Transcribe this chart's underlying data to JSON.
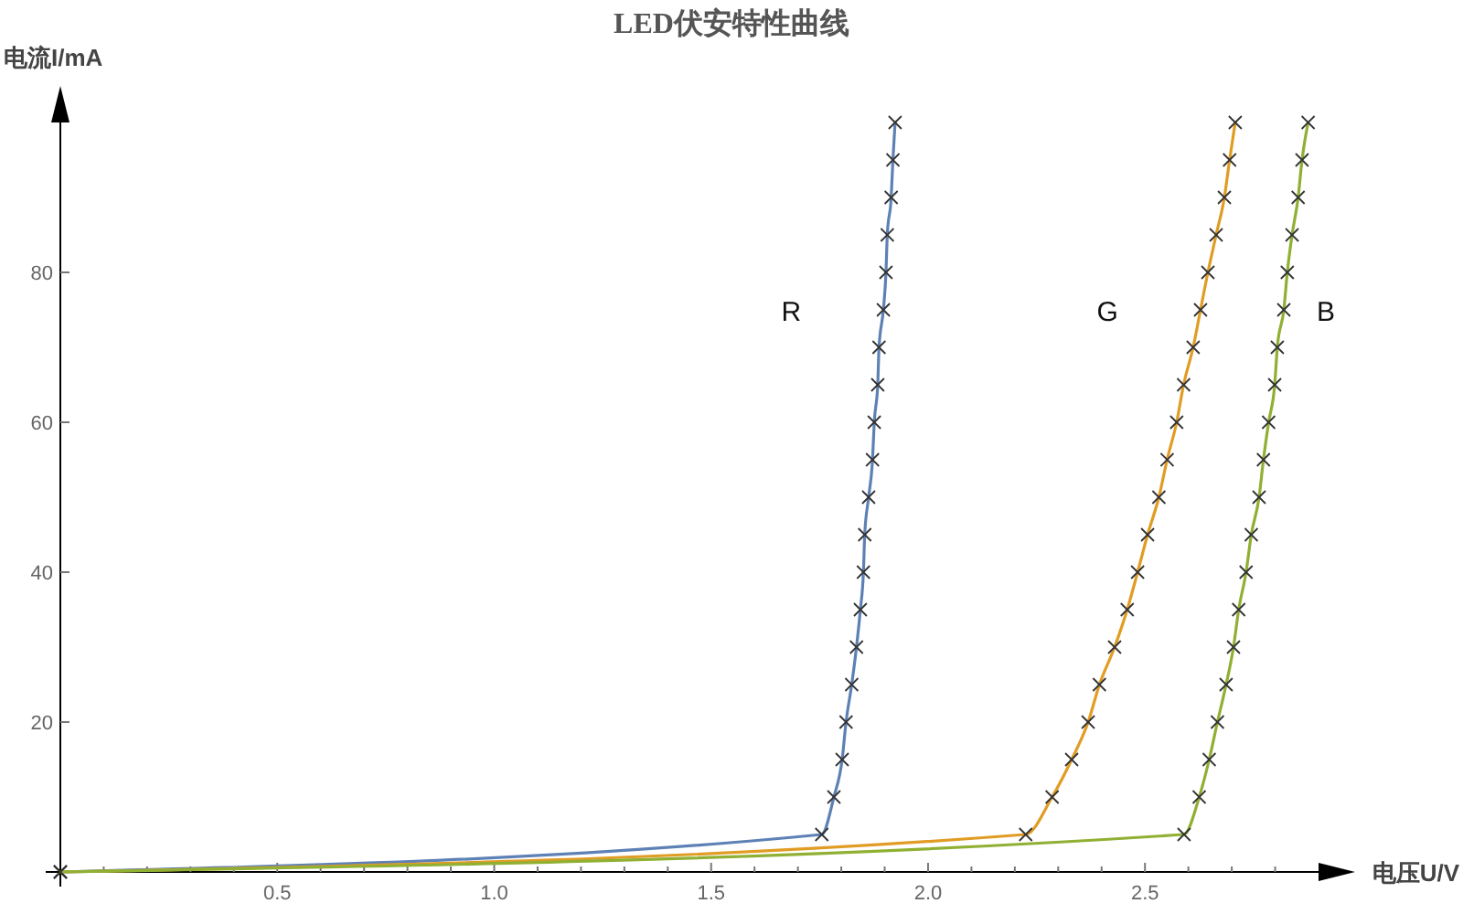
{
  "chart_data": {
    "type": "line",
    "title": "LED伏安特性曲线",
    "xlabel": "电压U/V",
    "ylabel": "电流I/mA",
    "xlim": [
      0,
      2.9
    ],
    "ylim": [
      0,
      100
    ],
    "xticks": [
      {
        "value": 0.1,
        "label": null
      },
      {
        "value": 0.2,
        "label": null
      },
      {
        "value": 0.3,
        "label": null
      },
      {
        "value": 0.4,
        "label": null
      },
      0.5,
      {
        "value": 0.6,
        "label": null
      },
      {
        "value": 0.7,
        "label": null
      },
      {
        "value": 0.8,
        "label": null
      },
      {
        "value": 0.9,
        "label": null
      },
      {
        "value": 1,
        "label": "1.0"
      },
      {
        "value": 1.1,
        "label": null
      },
      {
        "value": 1.2,
        "label": null
      },
      {
        "value": 1.3,
        "label": null
      },
      {
        "value": 1.4,
        "label": null
      },
      1.5,
      {
        "value": 1.6,
        "label": null
      },
      {
        "value": 1.7,
        "label": null
      },
      {
        "value": 1.8,
        "label": null
      },
      {
        "value": 1.9,
        "label": null
      },
      {
        "value": 2,
        "label": "2.0"
      },
      {
        "value": 2.1,
        "label": null
      },
      {
        "value": 2.2,
        "label": null
      },
      {
        "value": 2.3,
        "label": null
      },
      {
        "value": 2.4,
        "label": null
      },
      2.5,
      {
        "value": 2.6,
        "label": null
      },
      {
        "value": 2.7,
        "label": null
      },
      {
        "value": 2.8,
        "label": null
      }
    ],
    "yticks": [
      20,
      40,
      60,
      80
    ],
    "marker": "cross",
    "grid": false,
    "series": [
      {
        "name": "R",
        "color": "#5e81b5",
        "x": [
          0,
          1.755,
          1.783,
          1.802,
          1.811,
          1.824,
          1.835,
          1.844,
          1.851,
          1.854,
          1.863,
          1.872,
          1.876,
          1.884,
          1.887,
          1.897,
          1.903,
          1.906,
          1.915,
          1.919,
          1.924
        ],
        "values": [
          0,
          5,
          10,
          15,
          20,
          25,
          30,
          35,
          40,
          45,
          50,
          55,
          60,
          65,
          70,
          75,
          80,
          85,
          90,
          95,
          100
        ]
      },
      {
        "name": "G",
        "color": "#e19c24",
        "x": [
          0,
          2.225,
          2.286,
          2.331,
          2.369,
          2.395,
          2.43,
          2.459,
          2.483,
          2.506,
          2.532,
          2.551,
          2.573,
          2.589,
          2.611,
          2.628,
          2.645,
          2.664,
          2.683,
          2.695,
          2.708
        ],
        "values": [
          0,
          5,
          10,
          15,
          20,
          25,
          30,
          35,
          40,
          45,
          50,
          55,
          60,
          65,
          70,
          75,
          80,
          85,
          90,
          95,
          100
        ]
      },
      {
        "name": "B",
        "color": "#8fb032",
        "x": [
          0,
          2.59,
          2.625,
          2.648,
          2.667,
          2.687,
          2.704,
          2.716,
          2.733,
          2.745,
          2.763,
          2.773,
          2.785,
          2.799,
          2.805,
          2.82,
          2.828,
          2.839,
          2.853,
          2.862,
          2.876
        ],
        "values": [
          0,
          5,
          10,
          15,
          20,
          25,
          30,
          35,
          40,
          45,
          50,
          55,
          60,
          65,
          70,
          75,
          80,
          85,
          90,
          95,
          100
        ]
      }
    ]
  }
}
